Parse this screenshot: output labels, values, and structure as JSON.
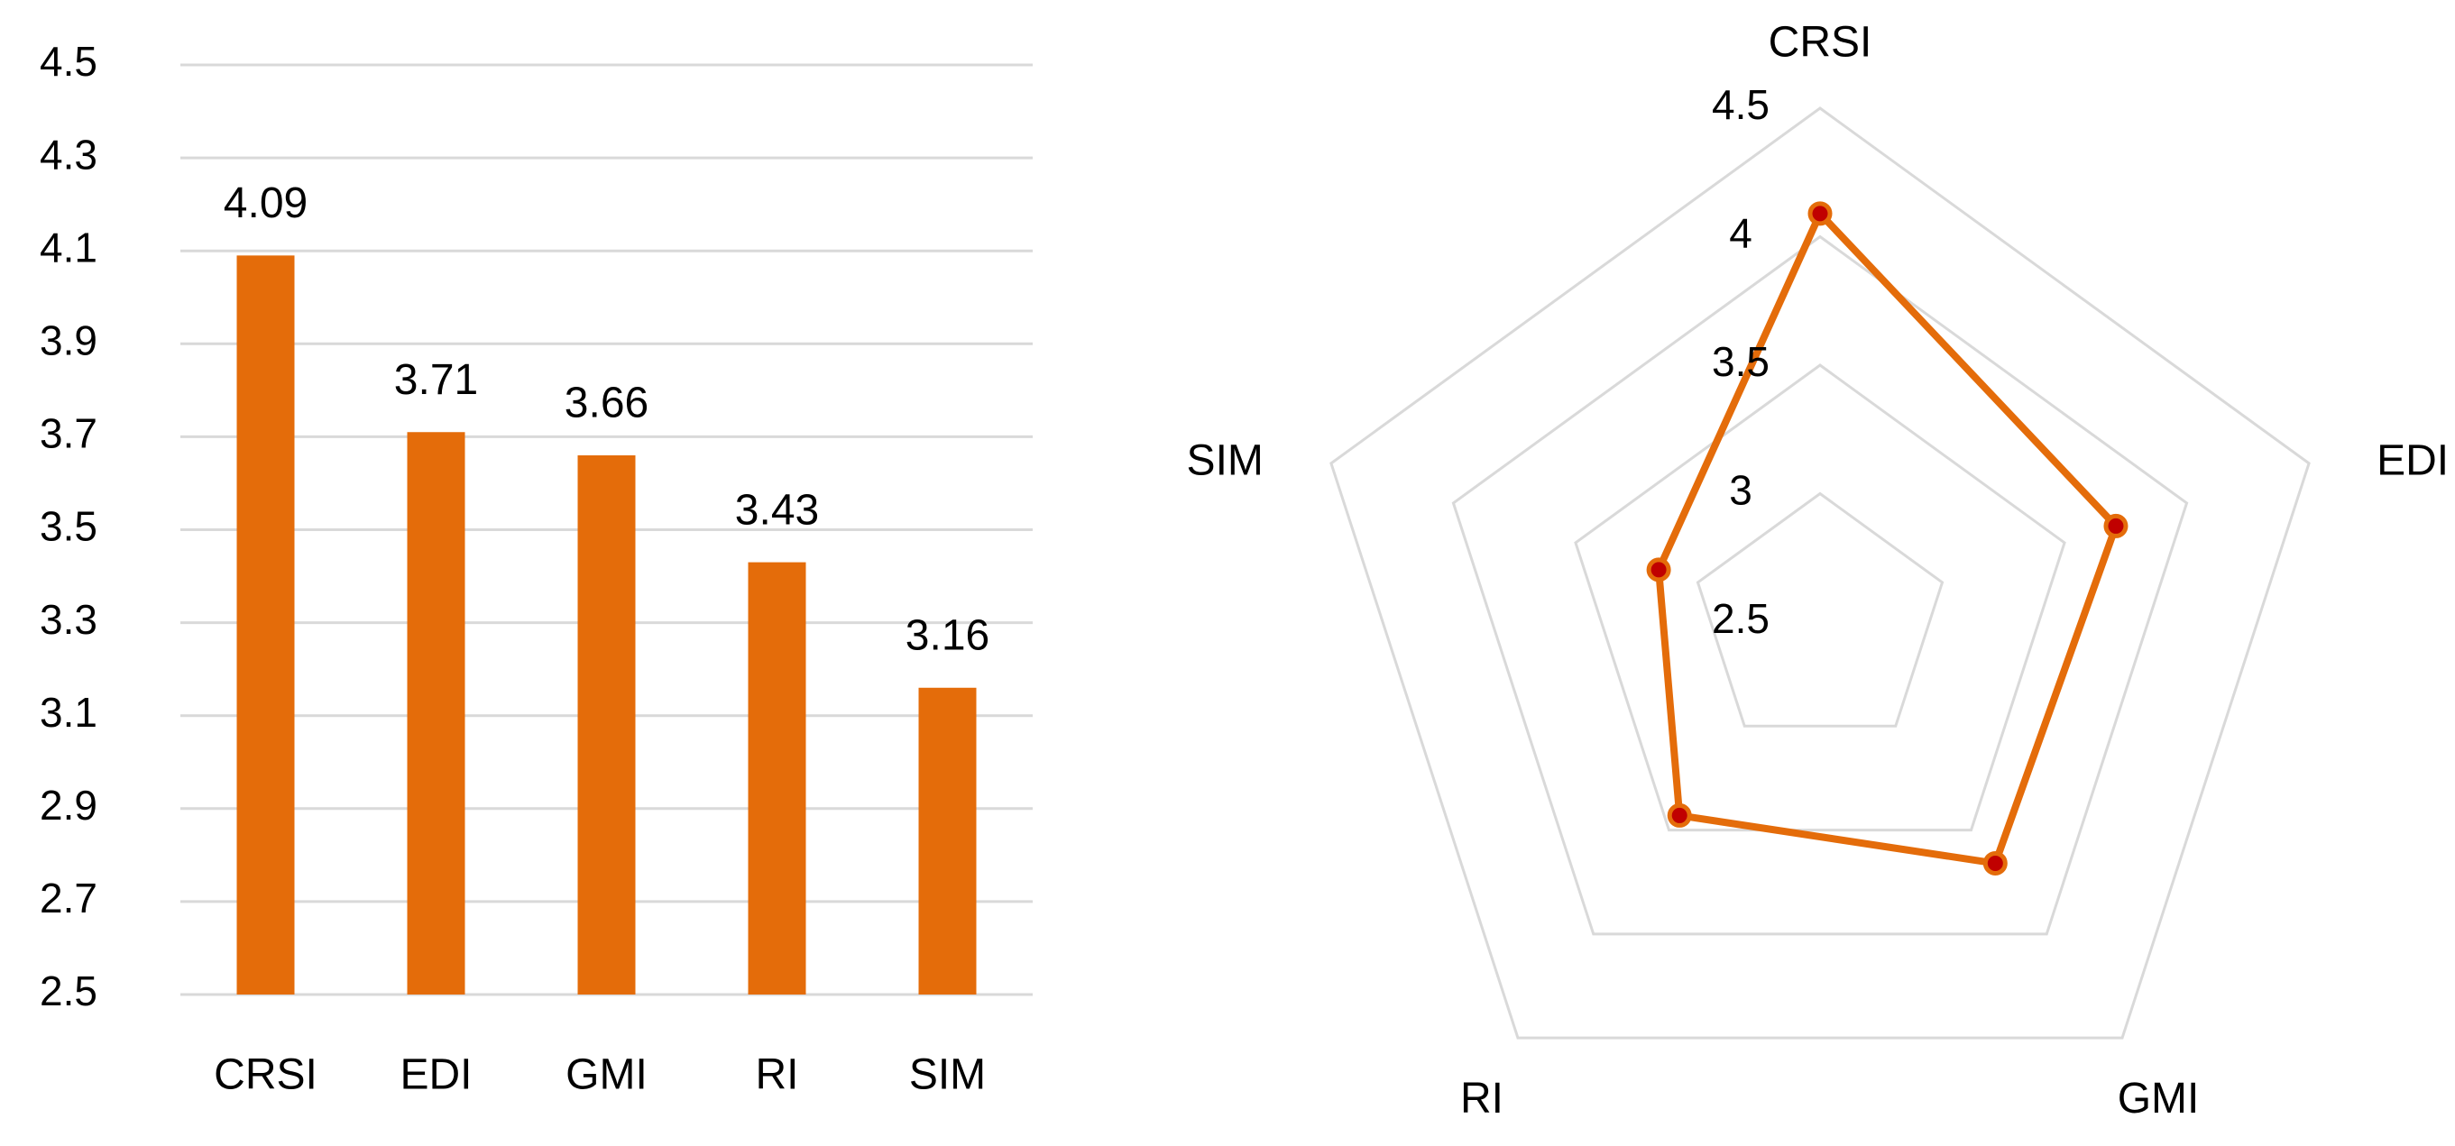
{
  "colors": {
    "bar": "#E46C0A",
    "radar_line": "#E46C0A",
    "radar_marker": "#C00000",
    "grid": "#D9D9D9",
    "text": "#000000"
  },
  "chart_data": [
    {
      "type": "bar",
      "categories": [
        "CRSI",
        "EDI",
        "GMI",
        "RI",
        "SIM"
      ],
      "values": [
        4.09,
        3.71,
        3.66,
        3.43,
        3.16
      ],
      "data_labels": [
        "4.09",
        "3.71",
        "3.66",
        "3.43",
        "3.16"
      ],
      "title": "",
      "xlabel": "",
      "ylabel": "",
      "ylim": [
        2.5,
        4.5
      ],
      "yticks": [
        "2.5",
        "2.7",
        "2.9",
        "3.1",
        "3.3",
        "3.5",
        "3.7",
        "3.9",
        "4.1",
        "4.3",
        "4.5"
      ],
      "grid": true,
      "legend": "none"
    },
    {
      "type": "radar",
      "categories": [
        "CRSI",
        "EDI",
        "GMI",
        "RI",
        "SIM"
      ],
      "values": [
        4.09,
        3.71,
        3.66,
        3.43,
        3.16
      ],
      "rlim": [
        2.5,
        4.5
      ],
      "rticks": [
        "2.5",
        "3",
        "3.5",
        "4",
        "4.5"
      ],
      "grid": true,
      "legend": "none"
    }
  ]
}
